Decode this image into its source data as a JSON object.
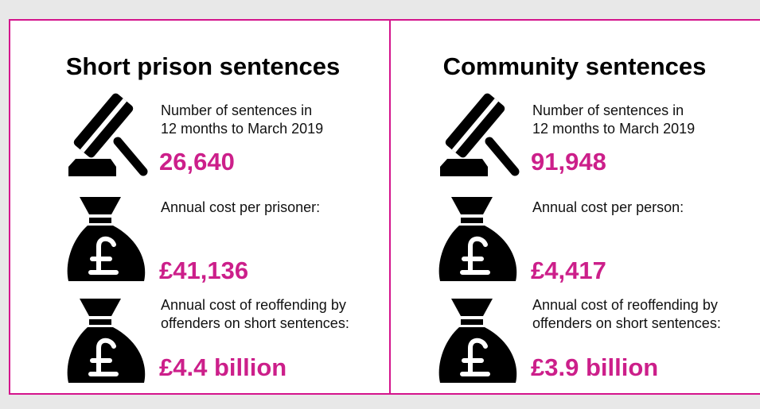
{
  "panels": [
    {
      "title": "Short prison sentences",
      "items": [
        {
          "label": [
            "Number of sentences in",
            "12 months to March 2019"
          ],
          "value": "26,640"
        },
        {
          "label": [
            "Annual cost per prisoner:"
          ],
          "value": "£41,136"
        },
        {
          "label": [
            "Annual cost of reoffending by",
            "offenders on short sentences:"
          ],
          "value": "£4.4 billion"
        }
      ]
    },
    {
      "title": "Community sentences",
      "items": [
        {
          "label": [
            "Number of sentences in",
            "12 months to March 2019"
          ],
          "value": "91,948"
        },
        {
          "label": [
            "Annual cost per person:"
          ],
          "value": "£4,417"
        },
        {
          "label": [
            "Annual cost of reoffending by",
            "offenders on short sentences:"
          ],
          "value": "£3.9 billion"
        }
      ]
    }
  ]
}
